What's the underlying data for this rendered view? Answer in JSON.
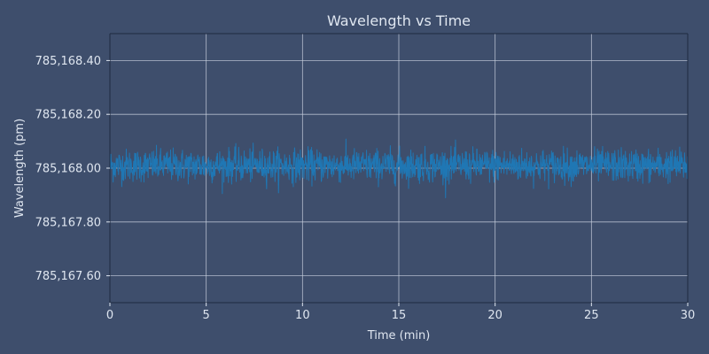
{
  "chart_data": {
    "type": "line",
    "title": "Wavelength vs Time",
    "xlabel": "Time (min)",
    "ylabel": "Wavelength (pm)",
    "xlim": [
      0,
      30
    ],
    "ylim": [
      785167.5,
      785168.5
    ],
    "x_ticks": [
      0,
      5,
      10,
      15,
      20,
      25,
      30
    ],
    "x_tick_labels": [
      "0",
      "5",
      "10",
      "15",
      "20",
      "25",
      "30"
    ],
    "y_ticks": [
      785167.6,
      785167.8,
      785168.0,
      785168.2,
      785168.4
    ],
    "y_tick_labels": [
      "785,167.60",
      "785,167.80",
      "785,168.00",
      "785,168.20",
      "785,168.40"
    ],
    "grid": true,
    "series": [
      {
        "color": "#1f77b4",
        "x_start": 0,
        "x_end": 30,
        "sample_count": 1800,
        "mean": 785168.01,
        "noise_std": 0.03,
        "min": 785167.89,
        "max": 785168.14
      }
    ]
  },
  "colors": {
    "background": "#3e4e6c",
    "axis": "#1f2a40",
    "grid": "#c8d0de",
    "text": "#dfe6f0",
    "line": "#1f77b4"
  }
}
